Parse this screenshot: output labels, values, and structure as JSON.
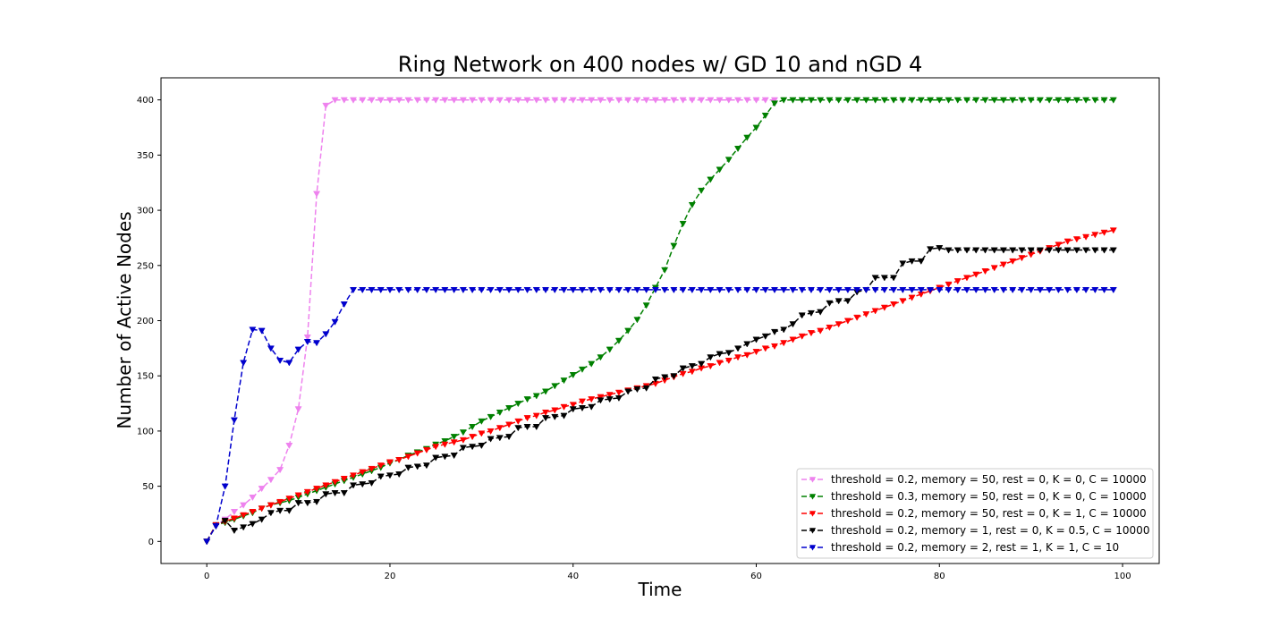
{
  "chart_data": {
    "type": "line",
    "title": "Ring Network on 400 nodes w/ GD 10 and nGD 4",
    "xlabel": "Time",
    "ylabel": "Number of Active Nodes",
    "xlim": [
      -5,
      104
    ],
    "ylim": [
      -20,
      420
    ],
    "xticks": [
      0,
      20,
      40,
      60,
      80,
      100
    ],
    "yticks": [
      0,
      50,
      100,
      150,
      200,
      250,
      300,
      350,
      400
    ],
    "grid": false,
    "legend_position": "lower-right",
    "marker": "triangle-down",
    "linestyle": "dashed",
    "series": [
      {
        "name": "threshold = 0.2, memory = 50, rest = 0, K = 0, C = 10000",
        "color": "#ee82ee",
        "x": [
          0,
          1,
          2,
          3,
          4,
          5,
          6,
          7,
          8,
          9,
          10,
          11,
          12,
          13,
          14,
          15,
          16,
          17,
          18,
          19,
          20,
          21,
          22,
          23,
          24,
          25,
          26,
          27,
          28,
          29,
          30,
          31,
          32,
          33,
          34,
          35,
          36,
          37,
          38,
          39,
          40,
          41,
          42,
          43,
          44,
          45,
          46,
          47,
          48,
          49,
          50,
          51,
          52,
          53,
          54,
          55,
          56,
          57,
          58,
          59,
          60,
          61,
          62
        ],
        "y": [
          0,
          15,
          20,
          27,
          33,
          40,
          48,
          56,
          65,
          87,
          120,
          185,
          315,
          395,
          400,
          400,
          400,
          400,
          400,
          400,
          400,
          400,
          400,
          400,
          400,
          400,
          400,
          400,
          400,
          400,
          400,
          400,
          400,
          400,
          400,
          400,
          400,
          400,
          400,
          400,
          400,
          400,
          400,
          400,
          400,
          400,
          400,
          400,
          400,
          400,
          400,
          400,
          400,
          400,
          400,
          400,
          400,
          400,
          400,
          400,
          400,
          400,
          400
        ]
      },
      {
        "name": "threshold = 0.3, memory = 50, rest = 0, K = 0, C = 10000",
        "color": "#008000",
        "x": [
          0,
          1,
          2,
          3,
          4,
          5,
          6,
          7,
          8,
          9,
          10,
          11,
          12,
          13,
          14,
          15,
          16,
          17,
          18,
          19,
          20,
          21,
          22,
          23,
          24,
          25,
          26,
          27,
          28,
          29,
          30,
          31,
          32,
          33,
          34,
          35,
          36,
          37,
          38,
          39,
          40,
          41,
          42,
          43,
          44,
          45,
          46,
          47,
          48,
          49,
          50,
          51,
          52,
          53,
          54,
          55,
          56,
          57,
          58,
          59,
          60,
          61,
          62,
          63,
          64,
          65,
          66,
          67,
          68,
          69,
          70,
          71,
          72,
          73,
          74,
          75,
          76,
          77,
          78,
          79,
          80,
          81,
          82,
          83,
          84,
          85,
          86,
          87,
          88,
          89,
          90,
          91,
          92,
          93,
          94,
          95,
          96,
          97,
          98,
          99
        ],
        "y": [
          0,
          15,
          17,
          20,
          23,
          26,
          30,
          33,
          35,
          37,
          40,
          43,
          46,
          49,
          52,
          55,
          58,
          61,
          64,
          67,
          71,
          74,
          78,
          81,
          84,
          88,
          91,
          95,
          99,
          104,
          109,
          113,
          117,
          121,
          125,
          129,
          132,
          136,
          141,
          146,
          151,
          156,
          161,
          167,
          174,
          182,
          191,
          201,
          214,
          230,
          246,
          268,
          288,
          305,
          318,
          328,
          337,
          346,
          356,
          366,
          375,
          386,
          397,
          400,
          400,
          400,
          400,
          400,
          400,
          400,
          400,
          400,
          400,
          400,
          400,
          400,
          400,
          400,
          400,
          400,
          400,
          400,
          400,
          400,
          400,
          400,
          400,
          400,
          400,
          400,
          400,
          400,
          400,
          400,
          400,
          400,
          400,
          400,
          400,
          400
        ]
      },
      {
        "name": "threshold = 0.2, memory = 50, rest = 0, K = 1, C = 10000",
        "color": "#ff0000",
        "x": [
          0,
          1,
          2,
          3,
          4,
          5,
          6,
          7,
          8,
          9,
          10,
          11,
          12,
          13,
          14,
          15,
          16,
          17,
          18,
          19,
          20,
          21,
          22,
          23,
          24,
          25,
          26,
          27,
          28,
          29,
          30,
          31,
          32,
          33,
          34,
          35,
          36,
          37,
          38,
          39,
          40,
          41,
          42,
          43,
          44,
          45,
          46,
          47,
          48,
          49,
          50,
          51,
          52,
          53,
          54,
          55,
          56,
          57,
          58,
          59,
          60,
          61,
          62,
          63,
          64,
          65,
          66,
          67,
          68,
          69,
          70,
          71,
          72,
          73,
          74,
          75,
          76,
          77,
          78,
          79,
          80,
          81,
          82,
          83,
          84,
          85,
          86,
          87,
          88,
          89,
          90,
          91,
          92,
          93,
          94,
          95,
          96,
          97,
          98,
          99
        ],
        "y": [
          0,
          15,
          18,
          21,
          24,
          27,
          30,
          33,
          36,
          39,
          42,
          45,
          48,
          51,
          54,
          57,
          60,
          63,
          66,
          69,
          72,
          74,
          77,
          80,
          83,
          86,
          88,
          90,
          92,
          95,
          98,
          100,
          103,
          106,
          109,
          112,
          114,
          117,
          119,
          122,
          124,
          127,
          129,
          131,
          133,
          135,
          137,
          139,
          141,
          143,
          146,
          149,
          152,
          154,
          157,
          159,
          162,
          164,
          167,
          169,
          172,
          175,
          177,
          180,
          183,
          186,
          189,
          191,
          194,
          197,
          200,
          203,
          206,
          209,
          212,
          215,
          218,
          221,
          224,
          227,
          230,
          233,
          236,
          239,
          242,
          245,
          248,
          251,
          254,
          257,
          260,
          263,
          266,
          269,
          272,
          274,
          276,
          278,
          280,
          282
        ]
      },
      {
        "name": "threshold = 0.2, memory = 1, rest = 0, K = 0.5, C = 10000",
        "color": "#000000",
        "x": [
          0,
          1,
          2,
          3,
          4,
          5,
          6,
          7,
          8,
          9,
          10,
          11,
          12,
          13,
          14,
          15,
          16,
          17,
          18,
          19,
          20,
          21,
          22,
          23,
          24,
          25,
          26,
          27,
          28,
          29,
          30,
          31,
          32,
          33,
          34,
          35,
          36,
          37,
          38,
          39,
          40,
          41,
          42,
          43,
          44,
          45,
          46,
          47,
          48,
          49,
          50,
          51,
          52,
          53,
          54,
          55,
          56,
          57,
          58,
          59,
          60,
          61,
          62,
          63,
          64,
          65,
          66,
          67,
          68,
          69,
          70,
          71,
          72,
          73,
          74,
          75,
          76,
          77,
          78,
          79,
          80,
          81,
          82,
          83,
          84,
          85,
          86,
          87,
          88,
          89,
          90,
          91,
          92,
          93,
          94,
          95,
          96,
          97,
          98,
          99
        ],
        "y": [
          0,
          14,
          19,
          10,
          13,
          16,
          20,
          26,
          28,
          28,
          35,
          35,
          36,
          43,
          44,
          44,
          51,
          52,
          53,
          59,
          60,
          61,
          67,
          68,
          69,
          76,
          77,
          78,
          85,
          86,
          87,
          93,
          94,
          95,
          103,
          104,
          104,
          112,
          113,
          114,
          120,
          121,
          122,
          128,
          129,
          130,
          136,
          138,
          139,
          147,
          149,
          150,
          157,
          159,
          161,
          167,
          170,
          171,
          175,
          179,
          183,
          186,
          190,
          192,
          197,
          205,
          207,
          208,
          216,
          218,
          218,
          226,
          228,
          239,
          239,
          239,
          252,
          254,
          254,
          265,
          266,
          264,
          264,
          264,
          264,
          264,
          264,
          264,
          264,
          264,
          264,
          264,
          264,
          264,
          264,
          264,
          264,
          264,
          264,
          264
        ]
      },
      {
        "name": "threshold = 0.2, memory = 2, rest = 1, K = 1, C = 10",
        "color": "#0000cd",
        "x": [
          0,
          1,
          2,
          3,
          4,
          5,
          6,
          7,
          8,
          9,
          10,
          11,
          12,
          13,
          14,
          15,
          16,
          17,
          18,
          19,
          20,
          21,
          22,
          23,
          24,
          25,
          26,
          27,
          28,
          29,
          30,
          31,
          32,
          33,
          34,
          35,
          36,
          37,
          38,
          39,
          40,
          41,
          42,
          43,
          44,
          45,
          46,
          47,
          48,
          49,
          50,
          51,
          52,
          53,
          54,
          55,
          56,
          57,
          58,
          59,
          60,
          61,
          62,
          63,
          64,
          65,
          66,
          67,
          68,
          69,
          70,
          71,
          72,
          73,
          74,
          75,
          76,
          77,
          78,
          79,
          80,
          81,
          82,
          83,
          84,
          85,
          86,
          87,
          88,
          89,
          90,
          91,
          92,
          93,
          94,
          95,
          96,
          97,
          98,
          99
        ],
        "y": [
          0,
          14,
          50,
          110,
          162,
          192,
          191,
          175,
          164,
          162,
          174,
          181,
          180,
          188,
          199,
          215,
          228,
          228,
          228,
          228,
          228,
          228,
          228,
          228,
          228,
          228,
          228,
          228,
          228,
          228,
          228,
          228,
          228,
          228,
          228,
          228,
          228,
          228,
          228,
          228,
          228,
          228,
          228,
          228,
          228,
          228,
          228,
          228,
          228,
          228,
          228,
          228,
          228,
          228,
          228,
          228,
          228,
          228,
          228,
          228,
          228,
          228,
          228,
          228,
          228,
          228,
          228,
          228,
          228,
          228,
          228,
          228,
          228,
          228,
          228,
          228,
          228,
          228,
          228,
          228,
          228,
          228,
          228,
          228,
          228,
          228,
          228,
          228,
          228,
          228,
          228,
          228,
          228,
          228,
          228,
          228,
          228,
          228,
          228,
          228
        ]
      }
    ]
  }
}
